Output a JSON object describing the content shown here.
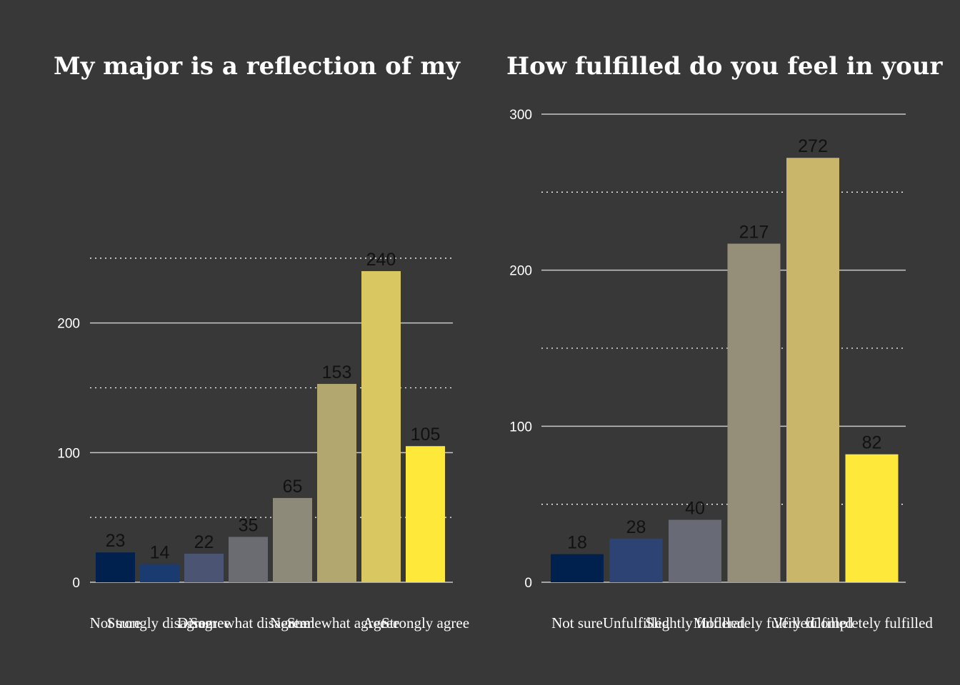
{
  "chart_data": [
    {
      "type": "bar",
      "title": "My major is a reflection of my",
      "categories": [
        "Not sure",
        "Strongly disagree",
        "Disagree",
        "Somewhat disagree",
        "Neutral",
        "Somewhat agree",
        "Agree",
        "Strongly agree"
      ],
      "values": [
        23,
        14,
        22,
        35,
        65,
        153,
        240,
        105
      ],
      "colors": [
        "#00204d",
        "#1a3b70",
        "#4b5473",
        "#6b6c72",
        "#8d8a7a",
        "#b3a770",
        "#d9c762",
        "#fee83a"
      ],
      "yticks": [
        0,
        100,
        200
      ],
      "ylim": [
        0,
        262
      ],
      "minor_gridlines": [
        50,
        150,
        250
      ],
      "xlabel": "",
      "ylabel": "",
      "grid": true,
      "legend": "none"
    },
    {
      "type": "bar",
      "title": "How fulfilled do you feel in your",
      "categories": [
        "Not sure",
        "Unfulfilled",
        "Slightly fulfilled",
        "Moderately fulfilled",
        "Very fulfilled",
        "Completely fulfilled"
      ],
      "values": [
        18,
        28,
        40,
        217,
        272,
        82
      ],
      "colors": [
        "#00204d",
        "#2d4373",
        "#686b75",
        "#958e78",
        "#c9b66a",
        "#fee83a"
      ],
      "yticks": [
        0,
        100,
        200,
        300
      ],
      "ylim": [
        0,
        300
      ],
      "minor_gridlines": [
        50,
        150,
        250
      ],
      "xlabel": "",
      "ylabel": "",
      "grid": true,
      "legend": "none"
    }
  ]
}
